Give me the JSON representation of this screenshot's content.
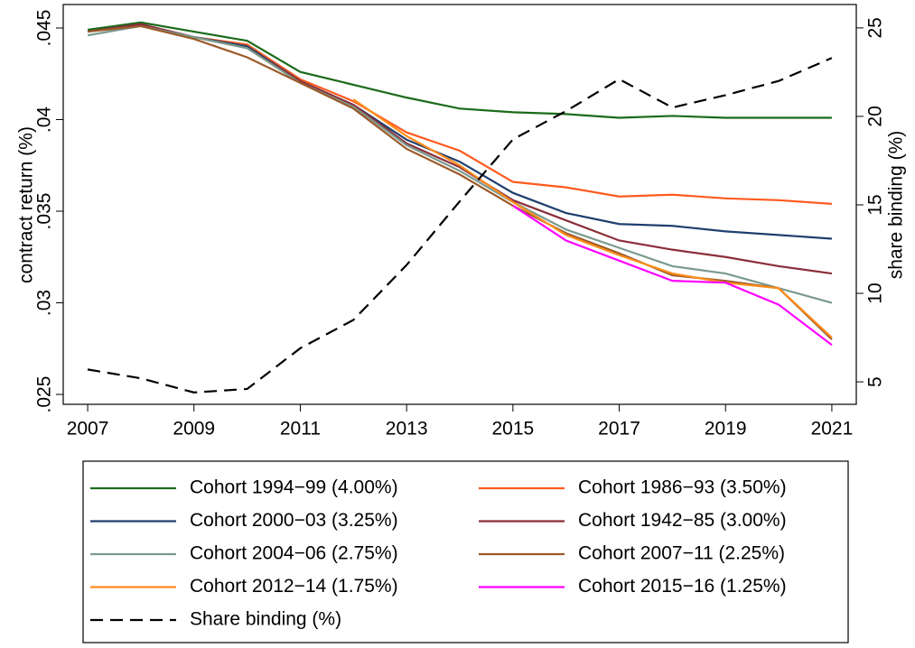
{
  "chart_data": {
    "type": "line",
    "x": [
      2007,
      2008,
      2009,
      2010,
      2011,
      2012,
      2013,
      2014,
      2015,
      2016,
      2017,
      2018,
      2019,
      2020,
      2021
    ],
    "xlim": [
      2006.54,
      2021.46
    ],
    "xticks": [
      2007,
      2009,
      2011,
      2013,
      2015,
      2017,
      2019,
      2021
    ],
    "ylabel": "contract return (%)",
    "y2label": "share binding (%)",
    "ylim": [
      0.02446,
      0.04628
    ],
    "yticks": [
      {
        "value": 0.025,
        "label": ".025"
      },
      {
        "value": 0.03,
        "label": ".03"
      },
      {
        "value": 0.035,
        "label": ".035"
      },
      {
        "value": 0.04,
        "label": ".04"
      },
      {
        "value": 0.045,
        "label": ".045"
      }
    ],
    "y2lim": [
      3.73,
      26.32
    ],
    "y2ticks": [
      5,
      10,
      15,
      20,
      25
    ],
    "series": [
      {
        "name": "Cohort 1994−99 (4.00%)",
        "color": "#1a6b1a",
        "values": [
          0.0449,
          0.0453,
          0.0448,
          0.0443,
          0.0426,
          0.0419,
          0.0412,
          0.0406,
          0.0404,
          0.0403,
          0.0401,
          0.0402,
          0.0401,
          0.0401,
          0.0401
        ]
      },
      {
        "name": "Cohort 1986−93 (3.50%)",
        "color": "#ff5a1f",
        "values": [
          0.0448,
          0.0452,
          0.0445,
          0.0441,
          0.0422,
          0.041,
          0.0393,
          0.0383,
          0.0366,
          0.0363,
          0.0358,
          0.0359,
          0.0357,
          0.0356,
          0.0354
        ]
      },
      {
        "name": "Cohort 2000−03 (3.25%)",
        "color": "#1f3f6e",
        "values": [
          0.0448,
          0.0452,
          0.0445,
          0.044,
          0.0421,
          0.0408,
          0.0389,
          0.0377,
          0.036,
          0.0349,
          0.0343,
          0.0342,
          0.0339,
          0.0337,
          0.0335
        ]
      },
      {
        "name": "Cohort 1942−85 (3.00%)",
        "color": "#8b2f3a",
        "values": [
          0.0448,
          0.0452,
          0.0445,
          0.0439,
          0.0421,
          0.0408,
          0.0387,
          0.0374,
          0.0356,
          0.0345,
          0.0334,
          0.0329,
          0.0325,
          0.032,
          0.0316
        ]
      },
      {
        "name": "Cohort 2004−06 (2.75%)",
        "color": "#7a9a8e",
        "values": [
          0.0446,
          0.0451,
          0.0445,
          0.0439,
          0.042,
          0.0407,
          0.0386,
          0.0372,
          0.0355,
          0.034,
          0.033,
          0.032,
          0.0316,
          0.0308,
          0.03
        ]
      },
      {
        "name": "Cohort 2007−11 (2.25%)",
        "color": "#9c5a2a",
        "values": [
          0.0448,
          0.0451,
          0.0444,
          0.0434,
          0.042,
          0.0406,
          0.0384,
          0.037,
          0.0353,
          0.0338,
          0.0327,
          0.0315,
          0.0312,
          0.0308,
          0.028
        ]
      },
      {
        "name": "Cohort 2012−14 (1.75%)",
        "color": "#ff8c1a",
        "values": [
          null,
          null,
          null,
          null,
          null,
          0.0411,
          0.0391,
          0.0375,
          0.0355,
          0.0337,
          0.0326,
          0.0316,
          0.0311,
          0.0308,
          0.0281
        ]
      },
      {
        "name": "Cohort 2015−16 (1.25%)",
        "color": "#ff00ff",
        "values": [
          null,
          null,
          null,
          null,
          null,
          null,
          null,
          null,
          0.0353,
          0.0334,
          0.0323,
          0.0312,
          0.0311,
          0.0299,
          0.0277
        ]
      },
      {
        "name": "Share binding (%)",
        "color": "#000000",
        "axis": "y2",
        "linestyle": "dashed",
        "values": [
          5.7,
          5.2,
          4.4,
          4.6,
          6.9,
          8.5,
          11.6,
          15.2,
          18.7,
          20.3,
          22.1,
          20.5,
          21.2,
          22.0,
          23.3
        ]
      }
    ]
  }
}
